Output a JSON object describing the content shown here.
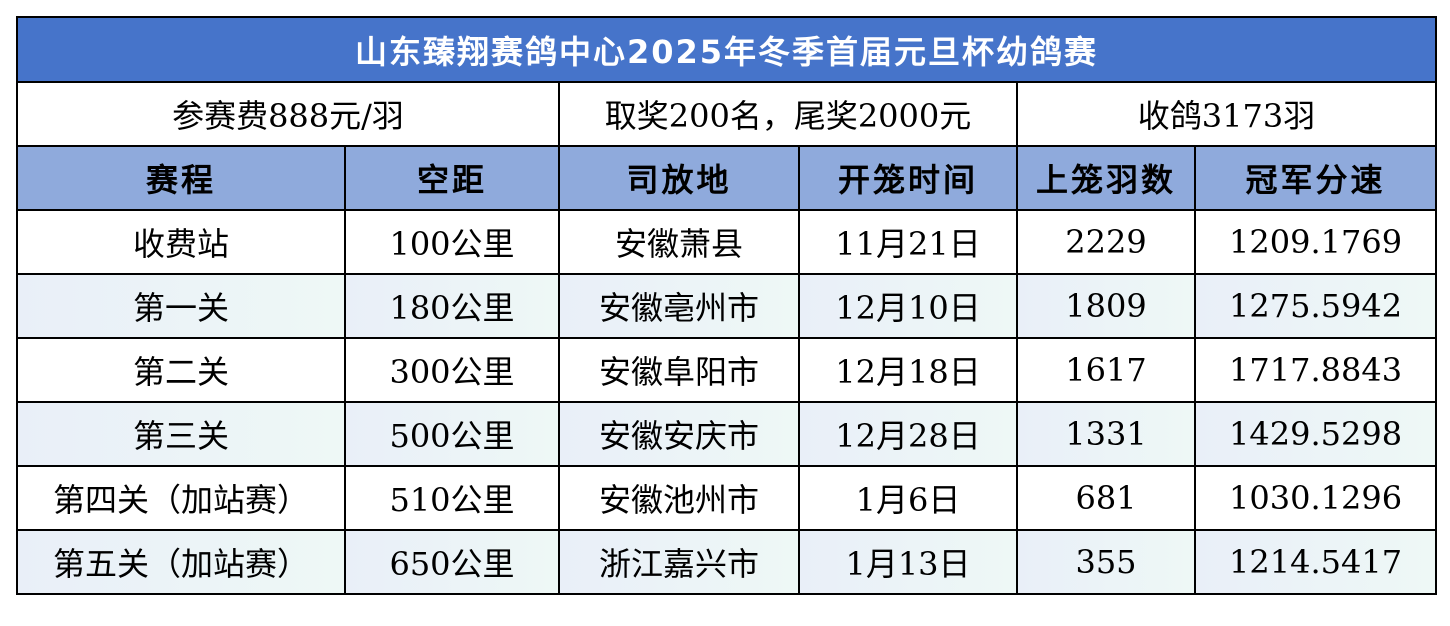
{
  "title": "山东臻翔赛鸽中心2025年冬季首届元旦杯幼鸽赛",
  "info": {
    "fee": "参赛费888元/羽",
    "prize": "取奖200名，尾奖2000元",
    "collected": "收鸽3173羽"
  },
  "headers": [
    "赛程",
    "空距",
    "司放地",
    "开笼时间",
    "上笼羽数",
    "冠军分速"
  ],
  "rows": [
    [
      "收费站",
      "100公里",
      "安徽萧县",
      "11月21日",
      "2229",
      "1209.1769"
    ],
    [
      "第一关",
      "180公里",
      "安徽亳州市",
      "12月10日",
      "1809",
      "1275.5942"
    ],
    [
      "第二关",
      "300公里",
      "安徽阜阳市",
      "12月18日",
      "1617",
      "1717.8843"
    ],
    [
      "第三关",
      "500公里",
      "安徽安庆市",
      "12月28日",
      "1331",
      "1429.5298"
    ],
    [
      "第四关（加站赛）",
      "510公里",
      "安徽池州市",
      "1月6日",
      "681",
      "1030.1296"
    ],
    [
      "第五关（加站赛）",
      "650公里",
      "浙江嘉兴市",
      "1月13日",
      "355",
      "1214.5417"
    ]
  ],
  "colors": {
    "title_bg": "#4674CA",
    "header_bg": "#8FAADC",
    "alt_row_bg": "#EAF0F8"
  }
}
